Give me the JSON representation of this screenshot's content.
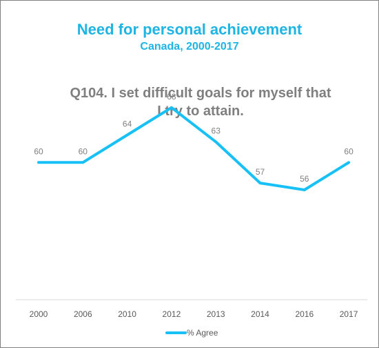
{
  "header": {
    "title": "Need for personal achievement",
    "subtitle": "Canada, 2000-2017",
    "question_line1": "Q104. I set difficult goals for myself that",
    "question_line2": "I try to attain."
  },
  "colors": {
    "accent": "#1eb4e3",
    "line": "#17c0f5",
    "text_gray": "#7f7f7f",
    "axis": "#d9d9d9",
    "border": "#7f7f7f"
  },
  "chart_data": {
    "type": "line",
    "categories": [
      "2000",
      "2006",
      "2010",
      "2012",
      "2013",
      "2014",
      "2016",
      "2017"
    ],
    "series": [
      {
        "name": "% Agree",
        "values": [
          60,
          60,
          64,
          68,
          63,
          57,
          56,
          60
        ]
      }
    ],
    "ylim": [
      40,
      72
    ],
    "grid": false,
    "legend_position": "bottom"
  }
}
